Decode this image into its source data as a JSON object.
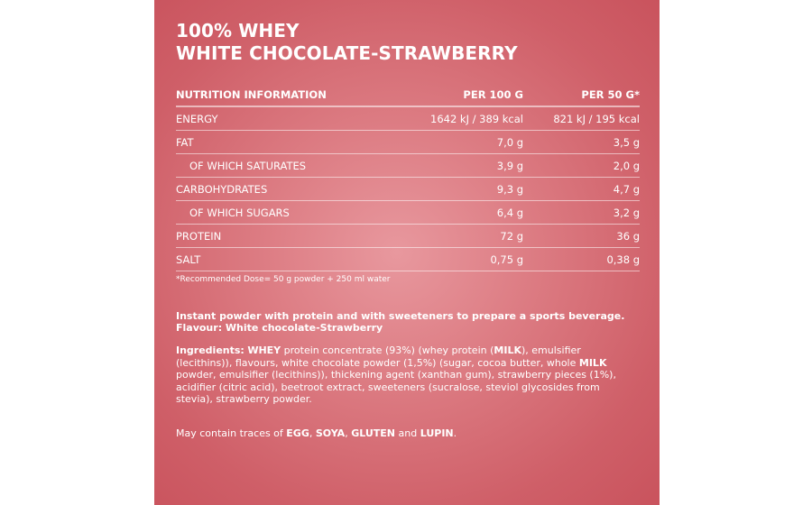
{
  "title": {
    "line1": "100% WHEY",
    "line2": "WHITE CHOCOLATE-STRAWBERRY"
  },
  "table": {
    "headers": [
      "NUTRITION INFORMATION",
      "PER 100 G",
      "PER 50 G*"
    ],
    "rows": [
      {
        "label": "ENERGY",
        "per100": "1642 kJ / 389 kcal",
        "per50": "821 kJ / 195 kcal",
        "sub": false
      },
      {
        "label": "FAT",
        "per100": "7,0 g",
        "per50": "3,5 g",
        "sub": false
      },
      {
        "label": "OF WHICH SATURATES",
        "per100": "3,9 g",
        "per50": "2,0 g",
        "sub": true
      },
      {
        "label": "CARBOHYDRATES",
        "per100": "9,3 g",
        "per50": "4,7 g",
        "sub": false
      },
      {
        "label": "OF WHICH SUGARS",
        "per100": "6,4 g",
        "per50": "3,2 g",
        "sub": true
      },
      {
        "label": "PROTEIN",
        "per100": "72 g",
        "per50": "36 g",
        "sub": false
      },
      {
        "label": "SALT",
        "per100": "0,75 g",
        "per50": "0,38 g",
        "sub": false
      }
    ]
  },
  "footnote": "*Recommended Dose= 50 g powder + 250 ml water",
  "description": {
    "line1": "Instant powder with protein and with sweeteners to prepare a sports beverage.",
    "line2": "Flavour: White chocolate-Strawberry"
  },
  "ingredients": {
    "label": "Ingredients:",
    "parts": [
      {
        "text": "WHEY",
        "bold": true
      },
      {
        "text": " protein concentrate (93%) (whey protein (",
        "bold": false
      },
      {
        "text": "MILK",
        "bold": true
      },
      {
        "text": "), emulsifier (lecithins)), flavours, white chocolate powder (1,5%) (sugar, cocoa butter, whole ",
        "bold": false
      },
      {
        "text": "MILK",
        "bold": true
      },
      {
        "text": " powder, emulsifier (lecithins)), thickening agent (xanthan gum), strawberry pieces (1%), acidifier (citric acid), beetroot extract, sweeteners (sucralose, steviol glycosides from stevia), strawberry powder.",
        "bold": false
      }
    ]
  },
  "traces": {
    "parts": [
      {
        "text": "May contain traces of ",
        "bold": false
      },
      {
        "text": "EGG",
        "bold": true
      },
      {
        "text": ", ",
        "bold": false
      },
      {
        "text": "SOYA",
        "bold": true
      },
      {
        "text": ", ",
        "bold": false
      },
      {
        "text": "GLUTEN",
        "bold": true
      },
      {
        "text": " and ",
        "bold": false
      },
      {
        "text": "LUPIN",
        "bold": true
      },
      {
        "text": ".",
        "bold": false
      }
    ]
  },
  "colors": {
    "panel_center": "#e8989e",
    "panel_edge": "#c9535d",
    "text": "#ffffff"
  }
}
